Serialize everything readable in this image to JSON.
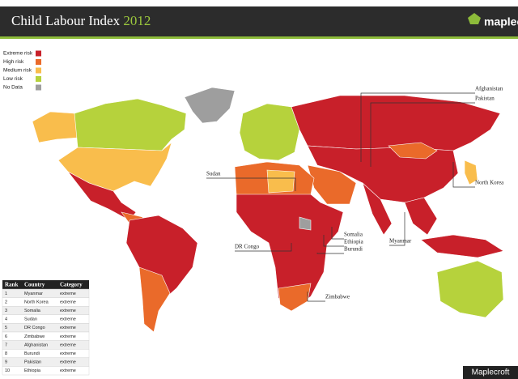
{
  "header": {
    "title": "Child Labour Index",
    "year": "2012",
    "logo": "maplecroft"
  },
  "legend": [
    {
      "label": "Extreme risk",
      "color": "#c8202a"
    },
    {
      "label": "High risk",
      "color": "#ea6a2a"
    },
    {
      "label": "Medium risk",
      "color": "#f9bd4c"
    },
    {
      "label": "Low risk",
      "color": "#b6d23c"
    },
    {
      "label": "No Data",
      "color": "#9e9e9e"
    }
  ],
  "labels": [
    "Afghanistan",
    "Pakistan",
    "North Korea",
    "Sudan",
    "Somalia",
    "Ethiopia",
    "Burundi",
    "DR Congo",
    "Myanmar",
    "Zimbabwe"
  ],
  "table": {
    "headers": [
      "Rank",
      "Country",
      "Category"
    ],
    "rows": [
      [
        1,
        "Myanmar",
        "extreme"
      ],
      [
        2,
        "North Korea",
        "extreme"
      ],
      [
        3,
        "Somalia",
        "extreme"
      ],
      [
        4,
        "Sudan",
        "extreme"
      ],
      [
        5,
        "DR Congo",
        "extreme"
      ],
      [
        6,
        "Zimbabwe",
        "extreme"
      ],
      [
        7,
        "Afghanistan",
        "extreme"
      ],
      [
        8,
        "Burundi",
        "extreme"
      ],
      [
        9,
        "Pakistan",
        "extreme"
      ],
      [
        10,
        "Ethiopia",
        "extreme"
      ]
    ]
  },
  "credit": "Maplecroft"
}
